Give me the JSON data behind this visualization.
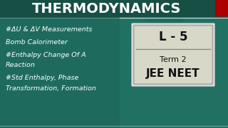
{
  "title": "THERMODYNAMICS",
  "title_color": "#FFFFFF",
  "title_fontsize": 14,
  "bg_color": "#1E6B5E",
  "bullet_lines": [
    "#ΔU & ΔV Measurements",
    "Bomb Calorimeter",
    "#Enthalpy Change Of A",
    "Reaction",
    "#Std Enthalpy, Phase",
    "Transformation, Formation"
  ],
  "bullet_color": "#FFFFFF",
  "bullet_fontsize": 6.8,
  "box_label": "L - 5",
  "box_line2": "Term 2",
  "box_line3": "JEE NEET",
  "box_bg": "#D8D8C8",
  "box_border": "#999999",
  "box_text_color": "#111111",
  "red_rect_color": "#AA0000",
  "top_line_color": "#AADDCC",
  "bottom_line_color": "#AADDCC"
}
